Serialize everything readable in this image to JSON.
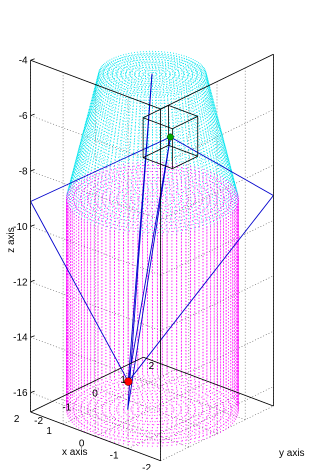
{
  "chart_data": {
    "type": "scatter",
    "xlabel": "x axis",
    "ylabel": "y axis",
    "zlabel": "z axis",
    "x_ticks": [
      "-2",
      "-1",
      "0",
      "1",
      "2"
    ],
    "y_ticks": [
      "-2",
      "-1",
      "0",
      "1",
      "2"
    ],
    "z_ticks": [
      "-4",
      "-6",
      "-8",
      "-10",
      "-12",
      "-14",
      "-16"
    ],
    "xlim": [
      -2,
      2
    ],
    "ylim": [
      -2,
      2
    ],
    "zlim": [
      -16.7,
      -4
    ],
    "grid": true,
    "surfaces": [
      {
        "kind": "truncated-cone",
        "color": "#00e5ee",
        "z_range": [
          -9.1,
          -4.6
        ],
        "radius_bottom": 2,
        "radius_top": 1.25
      },
      {
        "kind": "cylinder",
        "color": "#ff00ff",
        "z_range": [
          -16.7,
          -9.1
        ],
        "radius": 2
      }
    ],
    "points": [
      {
        "color": "#00aa00",
        "x": -0.35,
        "y": 0.25,
        "z": -6.85
      },
      {
        "color": "#ff0000",
        "x": 0.6,
        "y": -0.15,
        "z": -15.9
      }
    ],
    "line_color": "#0000cc",
    "box_color": "#000000"
  }
}
